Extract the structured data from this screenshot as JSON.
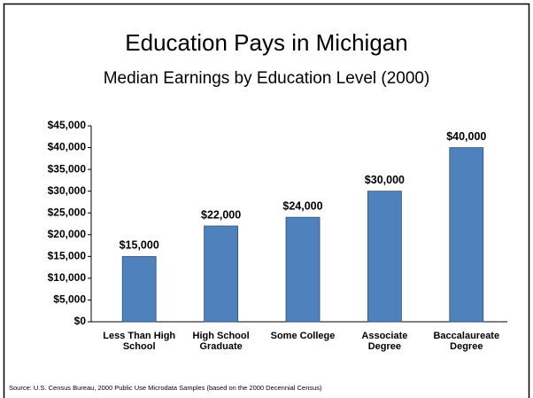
{
  "chart_data": {
    "type": "bar",
    "title": "Education Pays in Michigan",
    "subtitle": "Median Earnings by Education Level (2000)",
    "categories": [
      "Less Than High School",
      "High School Graduate",
      "Some College",
      "Associate Degree",
      "Baccalaureate Degree"
    ],
    "values": [
      15000,
      22000,
      24000,
      30000,
      40000
    ],
    "value_labels": [
      "$15,000",
      "$22,000",
      "$24,000",
      "$30,000",
      "$40,000"
    ],
    "color": "#4f81bd",
    "ylim": [
      0,
      45000
    ],
    "yticks": [
      {
        "value": 0,
        "label": "$0"
      },
      {
        "value": 5000,
        "label": "$5,000"
      },
      {
        "value": 10000,
        "label": "$10,000"
      },
      {
        "value": 15000,
        "label": "$15,000"
      },
      {
        "value": 20000,
        "label": "$20,000"
      },
      {
        "value": 25000,
        "label": "$25,000"
      },
      {
        "value": 30000,
        "label": "$30,000"
      },
      {
        "value": 35000,
        "label": "$35,000"
      },
      {
        "value": 40000,
        "label": "$40,000"
      },
      {
        "value": 45000,
        "label": "$45,000"
      }
    ],
    "grid": false,
    "source": "Source: U.S. Census Bureau, 2000 Public Use Microdata Samples (based on the 2000 Decennial Census)"
  }
}
